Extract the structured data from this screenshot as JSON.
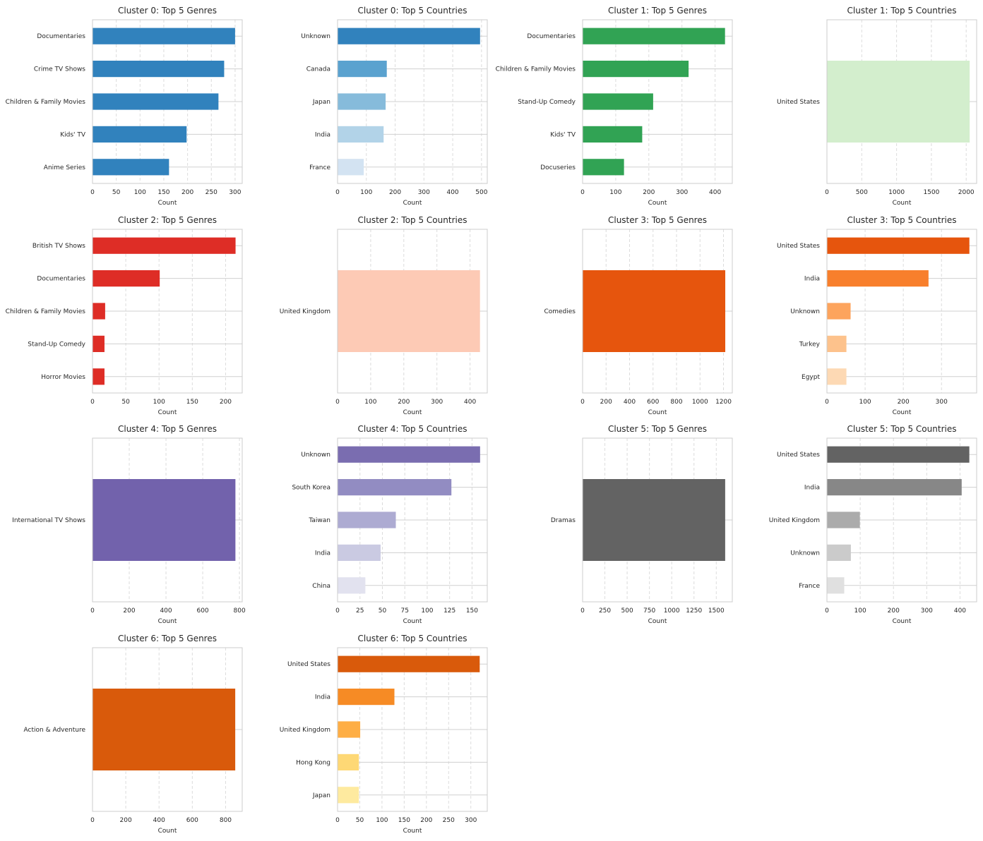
{
  "chart_data": [
    {
      "type": "bar",
      "orientation": "horizontal",
      "title": "Cluster 0: Top 5 Genres",
      "xlabel": "Count",
      "xlim": [
        0,
        315
      ],
      "xticks": [
        0,
        50,
        100,
        150,
        200,
        250,
        300
      ],
      "categories": [
        "Documentaries",
        "Crime TV Shows",
        "Children & Family Movies",
        "Kids' TV",
        "Anime Series"
      ],
      "values": [
        300,
        277,
        265,
        198,
        161
      ],
      "colors": [
        "#3182bd",
        "#3182bd",
        "#3182bd",
        "#3182bd",
        "#3182bd"
      ]
    },
    {
      "type": "bar",
      "orientation": "horizontal",
      "title": "Cluster 0: Top 5 Countries",
      "xlabel": "Count",
      "xlim": [
        0,
        520
      ],
      "xticks": [
        0,
        100,
        200,
        300,
        400,
        500
      ],
      "categories": [
        "Unknown",
        "Canada",
        "Japan",
        "India",
        "France"
      ],
      "values": [
        495,
        171,
        167,
        160,
        91
      ],
      "colors": [
        "#3182bd",
        "#5aa2cf",
        "#86bbdb",
        "#b2d3e8",
        "#d3e3f2"
      ]
    },
    {
      "type": "bar",
      "orientation": "horizontal",
      "title": "Cluster 1: Top 5 Genres",
      "xlabel": "Count",
      "xlim": [
        0,
        452
      ],
      "xticks": [
        0,
        100,
        200,
        300,
        400
      ],
      "categories": [
        "Documentaries",
        "Children & Family Movies",
        "Stand-Up Comedy",
        "Kids' TV",
        "Docuseries"
      ],
      "values": [
        430,
        320,
        213,
        180,
        125
      ],
      "colors": [
        "#31a354",
        "#31a354",
        "#31a354",
        "#31a354",
        "#31a354"
      ]
    },
    {
      "type": "bar",
      "orientation": "horizontal",
      "title": "Cluster 1: Top 5 Countries",
      "xlabel": "Count",
      "xlim": [
        0,
        2150
      ],
      "xticks": [
        0,
        500,
        1000,
        1500,
        2000
      ],
      "categories": [
        "United States"
      ],
      "values": [
        2050
      ],
      "colors": [
        "#d3eecd"
      ]
    },
    {
      "type": "bar",
      "orientation": "horizontal",
      "title": "Cluster 2: Top 5 Genres",
      "xlabel": "Count",
      "xlim": [
        0,
        225
      ],
      "xticks": [
        0,
        50,
        100,
        150,
        200
      ],
      "categories": [
        "British TV Shows",
        "Documentaries",
        "Children & Family Movies",
        "Stand-Up Comedy",
        "Horror Movies"
      ],
      "values": [
        215,
        101,
        19,
        18,
        18
      ],
      "colors": [
        "#de2d26",
        "#de2d26",
        "#de2d26",
        "#de2d26",
        "#de2d26"
      ]
    },
    {
      "type": "bar",
      "orientation": "horizontal",
      "title": "Cluster 2: Top 5 Countries",
      "xlabel": "Count",
      "xlim": [
        0,
        452
      ],
      "xticks": [
        0,
        100,
        200,
        300,
        400
      ],
      "categories": [
        "United Kingdom"
      ],
      "values": [
        430
      ],
      "colors": [
        "#fdcab5"
      ]
    },
    {
      "type": "bar",
      "orientation": "horizontal",
      "title": "Cluster 3: Top 5 Genres",
      "xlabel": "Count",
      "xlim": [
        0,
        1275
      ],
      "xticks": [
        0,
        200,
        400,
        600,
        800,
        1000,
        1200
      ],
      "categories": [
        "Comedies"
      ],
      "values": [
        1215
      ],
      "colors": [
        "#e6550d"
      ]
    },
    {
      "type": "bar",
      "orientation": "horizontal",
      "title": "Cluster 3: Top 5 Countries",
      "xlabel": "Count",
      "xlim": [
        0,
        392
      ],
      "xticks": [
        0,
        100,
        200,
        300
      ],
      "categories": [
        "United States",
        "India",
        "Unknown",
        "Turkey",
        "Egypt"
      ],
      "values": [
        373,
        266,
        62,
        51,
        51
      ],
      "colors": [
        "#e6550d",
        "#f87f2c",
        "#fda45d",
        "#fdc28c",
        "#fdd9b4"
      ]
    },
    {
      "type": "bar",
      "orientation": "horizontal",
      "title": "Cluster 4: Top 5 Genres",
      "xlabel": "Count",
      "xlim": [
        0,
        815
      ],
      "xticks": [
        0,
        200,
        400,
        600,
        800
      ],
      "categories": [
        "International TV Shows"
      ],
      "values": [
        778
      ],
      "colors": [
        "#7262ac"
      ]
    },
    {
      "type": "bar",
      "orientation": "horizontal",
      "title": "Cluster 4: Top 5 Countries",
      "xlabel": "Count",
      "xlim": [
        0,
        167
      ],
      "xticks": [
        0,
        25,
        50,
        75,
        100,
        125,
        150
      ],
      "categories": [
        "Unknown",
        "South Korea",
        "Taiwan",
        "India",
        "China"
      ],
      "values": [
        159,
        127,
        65,
        48,
        31
      ],
      "colors": [
        "#7a6db0",
        "#928cc2",
        "#adabd2",
        "#cacae2",
        "#e2e2ef"
      ]
    },
    {
      "type": "bar",
      "orientation": "horizontal",
      "title": "Cluster 5: Top 5 Genres",
      "xlabel": "Count",
      "xlim": [
        0,
        1680
      ],
      "xticks": [
        0,
        250,
        500,
        750,
        1000,
        1250,
        1500
      ],
      "categories": [
        "Dramas"
      ],
      "values": [
        1600
      ],
      "colors": [
        "#636363"
      ]
    },
    {
      "type": "bar",
      "orientation": "horizontal",
      "title": "Cluster 5: Top 5 Countries",
      "xlabel": "Count",
      "xlim": [
        0,
        450
      ],
      "xticks": [
        0,
        100,
        200,
        300,
        400
      ],
      "categories": [
        "United States",
        "India",
        "United Kingdom",
        "Unknown",
        "France"
      ],
      "values": [
        428,
        405,
        99,
        72,
        52
      ],
      "colors": [
        "#636363",
        "#878787",
        "#ababab",
        "#cbcbcb",
        "#e0e0e0"
      ]
    },
    {
      "type": "bar",
      "orientation": "horizontal",
      "title": "Cluster 6: Top 5 Genres",
      "xlabel": "Count",
      "xlim": [
        0,
        900
      ],
      "xticks": [
        0,
        200,
        400,
        600,
        800
      ],
      "categories": [
        "Action & Adventure"
      ],
      "values": [
        858
      ],
      "colors": [
        "#d95a0b"
      ]
    },
    {
      "type": "bar",
      "orientation": "horizontal",
      "title": "Cluster 6: Top 5 Countries",
      "xlabel": "Count",
      "xlim": [
        0,
        337
      ],
      "xticks": [
        0,
        50,
        100,
        150,
        200,
        250,
        300
      ],
      "categories": [
        "United States",
        "India",
        "United Kingdom",
        "Hong Kong",
        "Japan"
      ],
      "values": [
        320,
        128,
        51,
        48,
        48
      ],
      "colors": [
        "#d95a0b",
        "#f68b25",
        "#feae45",
        "#fed875",
        "#feea9f"
      ]
    }
  ]
}
